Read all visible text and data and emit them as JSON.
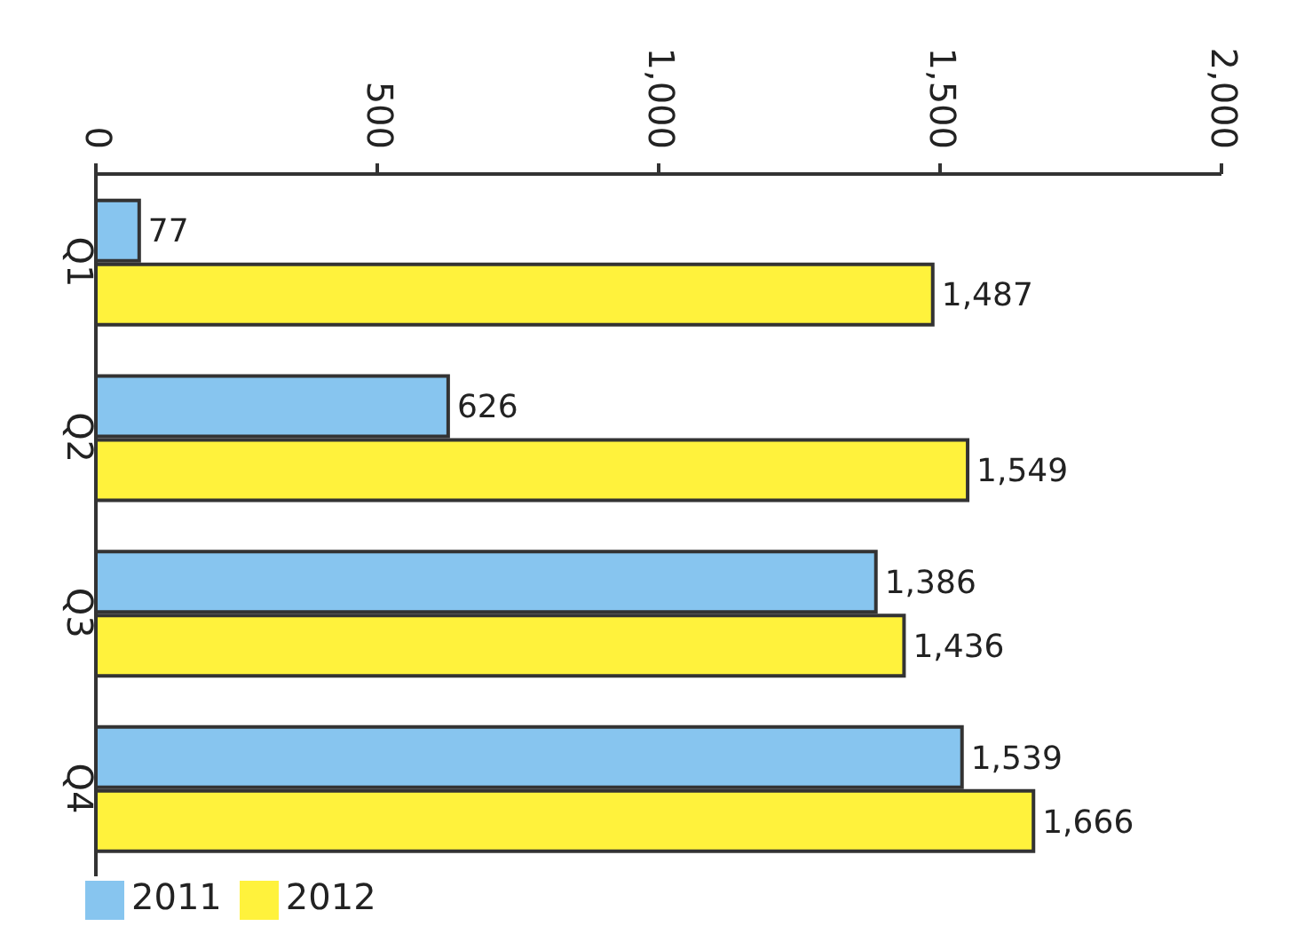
{
  "chart_data": {
    "type": "bar",
    "orientation": "horizontal",
    "categories": [
      "Q1",
      "Q2",
      "Q3",
      "Q4"
    ],
    "series": [
      {
        "name": "2011",
        "color": "#87c5ef",
        "values": [
          77,
          626,
          1386,
          1539
        ],
        "value_labels": [
          "77",
          "626",
          "1,386",
          "1,539"
        ]
      },
      {
        "name": "2012",
        "color": "#fff23c",
        "values": [
          1487,
          1549,
          1436,
          1666
        ],
        "value_labels": [
          "1,487",
          "1,549",
          "1,436",
          "1,666"
        ]
      }
    ],
    "xlim": [
      0,
      2000
    ],
    "xticks": [
      0,
      500,
      {
        "value": 1000,
        "label": "1,000"
      },
      {
        "value": 1500,
        "label": "1,500"
      },
      {
        "value": 2000,
        "label": "2,000"
      }
    ],
    "legend": "bottom left",
    "grid": false
  }
}
